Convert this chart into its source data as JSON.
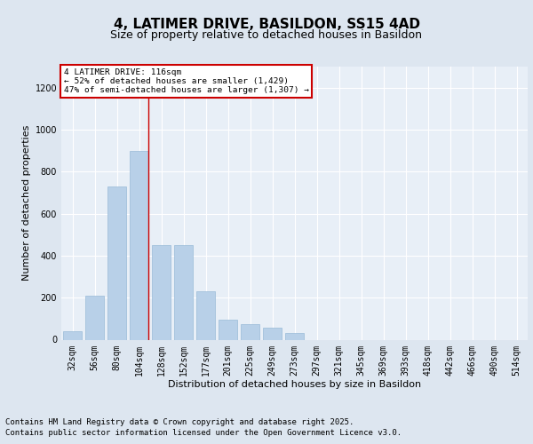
{
  "title": "4, LATIMER DRIVE, BASILDON, SS15 4AD",
  "subtitle": "Size of property relative to detached houses in Basildon",
  "xlabel": "Distribution of detached houses by size in Basildon",
  "ylabel": "Number of detached properties",
  "categories": [
    "32sqm",
    "56sqm",
    "80sqm",
    "104sqm",
    "128sqm",
    "152sqm",
    "177sqm",
    "201sqm",
    "225sqm",
    "249sqm",
    "273sqm",
    "297sqm",
    "321sqm",
    "345sqm",
    "369sqm",
    "393sqm",
    "418sqm",
    "442sqm",
    "466sqm",
    "490sqm",
    "514sqm"
  ],
  "values": [
    40,
    210,
    730,
    900,
    450,
    450,
    230,
    95,
    75,
    55,
    30,
    0,
    0,
    0,
    0,
    0,
    0,
    0,
    0,
    0,
    0
  ],
  "bar_color": "#b8d0e8",
  "bar_edgecolor": "#99bad8",
  "annotation_box_text": "4 LATIMER DRIVE: 116sqm\n← 52% of detached houses are smaller (1,429)\n47% of semi-detached houses are larger (1,307) →",
  "annotation_box_color": "#cc0000",
  "vline_x": 3.43,
  "vline_color": "#cc0000",
  "ylim": [
    0,
    1300
  ],
  "yticks": [
    0,
    200,
    400,
    600,
    800,
    1000,
    1200
  ],
  "footer_line1": "Contains HM Land Registry data © Crown copyright and database right 2025.",
  "footer_line2": "Contains public sector information licensed under the Open Government Licence v3.0.",
  "bg_color": "#dde6f0",
  "plot_bg_color": "#e8eff7",
  "title_fontsize": 11,
  "subtitle_fontsize": 9,
  "axis_label_fontsize": 8,
  "tick_fontsize": 7,
  "footer_fontsize": 6.5
}
